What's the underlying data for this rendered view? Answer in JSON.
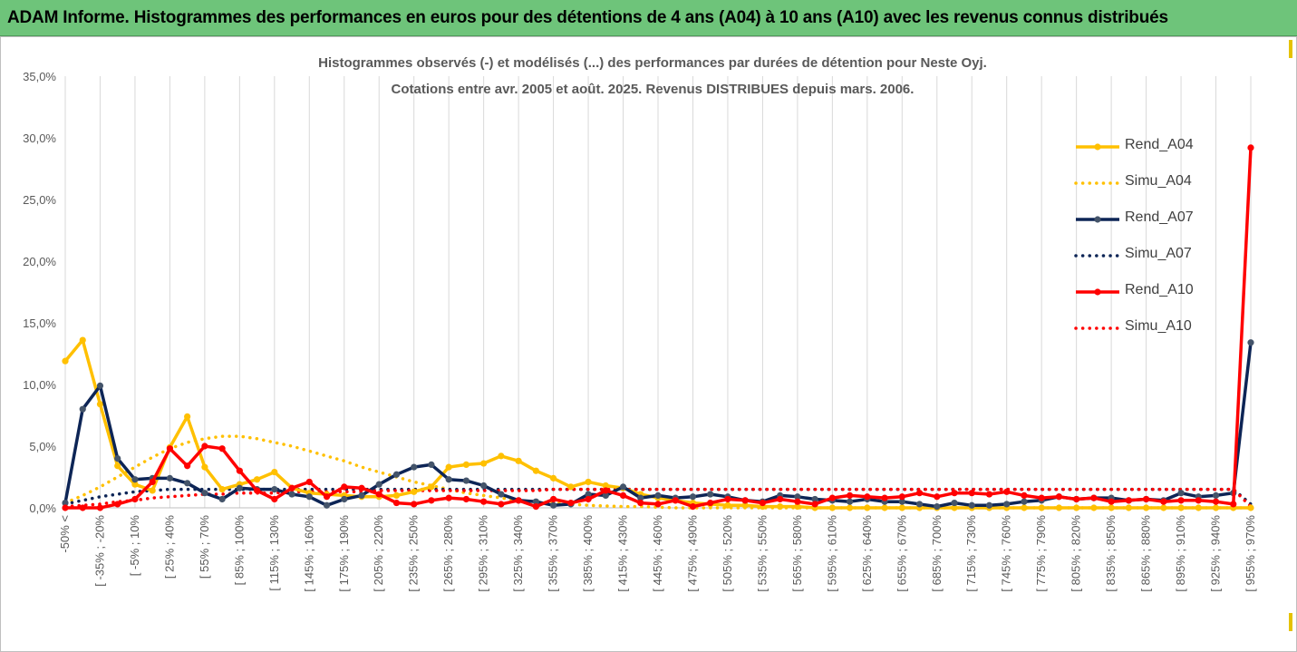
{
  "header": {
    "title": "ADAM Informe. Histogrammes des performances en euros pour des détentions de 4 ans (A04) à 10 ans (A10) avec les revenus connus distribués"
  },
  "colors": {
    "banner": "#6ec47a",
    "A04": "#ffc000",
    "A07": "#0d2556",
    "A10": "#ff0000",
    "grid": "#d9d9d9",
    "axis_text": "#595959"
  },
  "chart_data": {
    "type": "line",
    "title": "Histogrammes observés (-) et modélisés (...) des performances par durées de détention pour Neste Oyj.",
    "subtitle": "Cotations entre avr. 2005 et août. 2025. Revenus DISTRIBUES depuis mars. 2006.",
    "xlabel": "",
    "ylabel": "",
    "ylim": [
      0,
      35
    ],
    "grid": "vertical",
    "legend_position": "right",
    "y_ticks": [
      "0,0%",
      "5,0%",
      "10,0%",
      "15,0%",
      "20,0%",
      "25,0%",
      "30,0%",
      "35,0%"
    ],
    "x_tick_labels": [
      "-50% <",
      "[ -35% ; -20%",
      "[ -5% ; 10%",
      "[ 25% ; 40%",
      "[ 55% ; 70%",
      "[ 85% ; 100%",
      "[ 115% ; 130%",
      "[ 145% ; 160%",
      "[ 175% ; 190%",
      "[ 205% ; 220%",
      "[ 235% ; 250%",
      "[ 265% ; 280%",
      "[ 295% ; 310%",
      "[ 325% ; 340%",
      "[ 355% ; 370%",
      "[ 385% ; 400%",
      "[ 415% ; 430%",
      "[ 445% ; 460%",
      "[ 475% ; 490%",
      "[ 505% ; 520%",
      "[ 535% ; 550%",
      "[ 565% ; 580%",
      "[ 595% ; 610%",
      "[ 625% ; 640%",
      "[ 655% ; 670%",
      "[ 685% ; 700%",
      "[ 715% ; 730%",
      "[ 745% ; 760%",
      "[ 775% ; 790%",
      "[ 805% ; 820%",
      "[ 835% ; 850%",
      "[ 865% ; 880%",
      "[ 895% ; 910%",
      "[ 925% ; 940%",
      "[ 955% ; 970%"
    ],
    "x_count": 69,
    "series": [
      {
        "name": "Rend_A04",
        "style": "solid",
        "color": "#ffc000",
        "values": [
          11.9,
          13.6,
          8.4,
          3.4,
          1.9,
          1.4,
          4.9,
          7.4,
          3.3,
          1.5,
          1.9,
          2.3,
          2.9,
          1.6,
          1.2,
          1.1,
          1.0,
          0.9,
          0.9,
          1.0,
          1.3,
          1.7,
          3.3,
          3.5,
          3.6,
          4.2,
          3.8,
          3.0,
          2.4,
          1.7,
          2.1,
          1.8,
          1.6,
          1.1,
          0.8,
          0.6,
          0.4,
          0.3,
          0.2,
          0.2,
          0.1,
          0.1,
          0.1,
          0,
          0,
          0,
          0,
          0,
          0,
          0,
          0,
          0,
          0,
          0,
          0,
          0,
          0,
          0,
          0,
          0,
          0,
          0,
          0,
          0,
          0,
          0,
          0,
          0,
          0
        ]
      },
      {
        "name": "Simu_A04",
        "style": "dotted",
        "color": "#ffc000",
        "values": [
          0.4,
          1.0,
          1.7,
          2.5,
          3.3,
          4.1,
          4.8,
          5.3,
          5.6,
          5.8,
          5.8,
          5.6,
          5.3,
          5.0,
          4.6,
          4.2,
          3.8,
          3.3,
          2.9,
          2.5,
          2.1,
          1.8,
          1.5,
          1.2,
          1.0,
          0.8,
          0.6,
          0.5,
          0.4,
          0.3,
          0.2,
          0.15,
          0.1,
          0.1,
          0.05,
          0,
          0,
          0,
          0,
          0,
          0,
          0,
          0,
          0,
          0,
          0,
          0,
          0,
          0,
          0,
          0,
          0,
          0,
          0,
          0,
          0,
          0,
          0,
          0,
          0,
          0,
          0,
          0,
          0,
          0,
          0,
          0,
          0,
          0
        ]
      },
      {
        "name": "Rend_A07",
        "style": "solid",
        "color": "#0d2556",
        "values": [
          0.4,
          8.0,
          9.9,
          4.0,
          2.3,
          2.4,
          2.4,
          2.0,
          1.2,
          0.7,
          1.6,
          1.5,
          1.5,
          1.1,
          0.9,
          0.2,
          0.7,
          1.0,
          1.9,
          2.7,
          3.3,
          3.5,
          2.3,
          2.2,
          1.8,
          1.1,
          0.6,
          0.5,
          0.2,
          0.3,
          1.1,
          1.0,
          1.7,
          0.8,
          1.0,
          0.8,
          0.9,
          1.1,
          0.9,
          0.6,
          0.5,
          1.0,
          0.9,
          0.7,
          0.6,
          0.5,
          0.7,
          0.5,
          0.5,
          0.3,
          0.1,
          0.4,
          0.2,
          0.2,
          0.3,
          0.5,
          0.6,
          0.9,
          0.7,
          0.8,
          0.8,
          0.6,
          0.7,
          0.6,
          1.2,
          0.9,
          1.0,
          1.2,
          13.4
        ]
      },
      {
        "name": "Simu_A07",
        "style": "dotted",
        "color": "#0d2556",
        "values": [
          0.3,
          0.6,
          0.9,
          1.1,
          1.3,
          1.4,
          1.5,
          1.5,
          1.5,
          1.5,
          1.5,
          1.5,
          1.5,
          1.5,
          1.5,
          1.5,
          1.5,
          1.5,
          1.5,
          1.5,
          1.5,
          1.5,
          1.5,
          1.5,
          1.5,
          1.5,
          1.5,
          1.5,
          1.5,
          1.5,
          1.5,
          1.5,
          1.5,
          1.5,
          1.5,
          1.5,
          1.5,
          1.5,
          1.5,
          1.5,
          1.5,
          1.5,
          1.5,
          1.5,
          1.5,
          1.5,
          1.5,
          1.5,
          1.5,
          1.5,
          1.5,
          1.5,
          1.5,
          1.5,
          1.5,
          1.5,
          1.5,
          1.5,
          1.5,
          1.5,
          1.5,
          1.5,
          1.5,
          1.5,
          1.5,
          1.5,
          1.5,
          1.5,
          0.3
        ]
      },
      {
        "name": "Rend_A10",
        "style": "solid",
        "color": "#ff0000",
        "values": [
          0,
          0,
          0,
          0.3,
          0.7,
          2.1,
          4.8,
          3.4,
          5.0,
          4.8,
          3.0,
          1.4,
          0.7,
          1.6,
          2.1,
          0.9,
          1.7,
          1.6,
          1.1,
          0.4,
          0.3,
          0.6,
          0.8,
          0.7,
          0.5,
          0.3,
          0.6,
          0.1,
          0.7,
          0.4,
          0.7,
          1.4,
          1.0,
          0.4,
          0.3,
          0.6,
          0.1,
          0.4,
          0.7,
          0.6,
          0.4,
          0.7,
          0.5,
          0.3,
          0.8,
          1.0,
          0.9,
          0.8,
          0.9,
          1.2,
          0.9,
          1.2,
          1.2,
          1.1,
          1.3,
          1.0,
          0.8,
          0.9,
          0.7,
          0.8,
          0.5,
          0.6,
          0.7,
          0.5,
          0.6,
          0.6,
          0.5,
          0.3,
          29.2
        ]
      },
      {
        "name": "Simu_A10",
        "style": "dotted",
        "color": "#ff0000",
        "values": [
          0.1,
          0.2,
          0.3,
          0.5,
          0.6,
          0.8,
          0.9,
          1.0,
          1.1,
          1.1,
          1.2,
          1.2,
          1.2,
          1.3,
          1.3,
          1.3,
          1.3,
          1.3,
          1.4,
          1.4,
          1.4,
          1.4,
          1.4,
          1.4,
          1.4,
          1.4,
          1.4,
          1.4,
          1.5,
          1.5,
          1.5,
          1.5,
          1.5,
          1.5,
          1.5,
          1.5,
          1.5,
          1.5,
          1.5,
          1.5,
          1.5,
          1.5,
          1.5,
          1.5,
          1.5,
          1.5,
          1.5,
          1.5,
          1.5,
          1.5,
          1.5,
          1.5,
          1.5,
          1.5,
          1.5,
          1.5,
          1.5,
          1.5,
          1.5,
          1.5,
          1.5,
          1.5,
          1.5,
          1.5,
          1.5,
          1.5,
          1.5,
          1.5,
          0.1
        ]
      }
    ]
  }
}
